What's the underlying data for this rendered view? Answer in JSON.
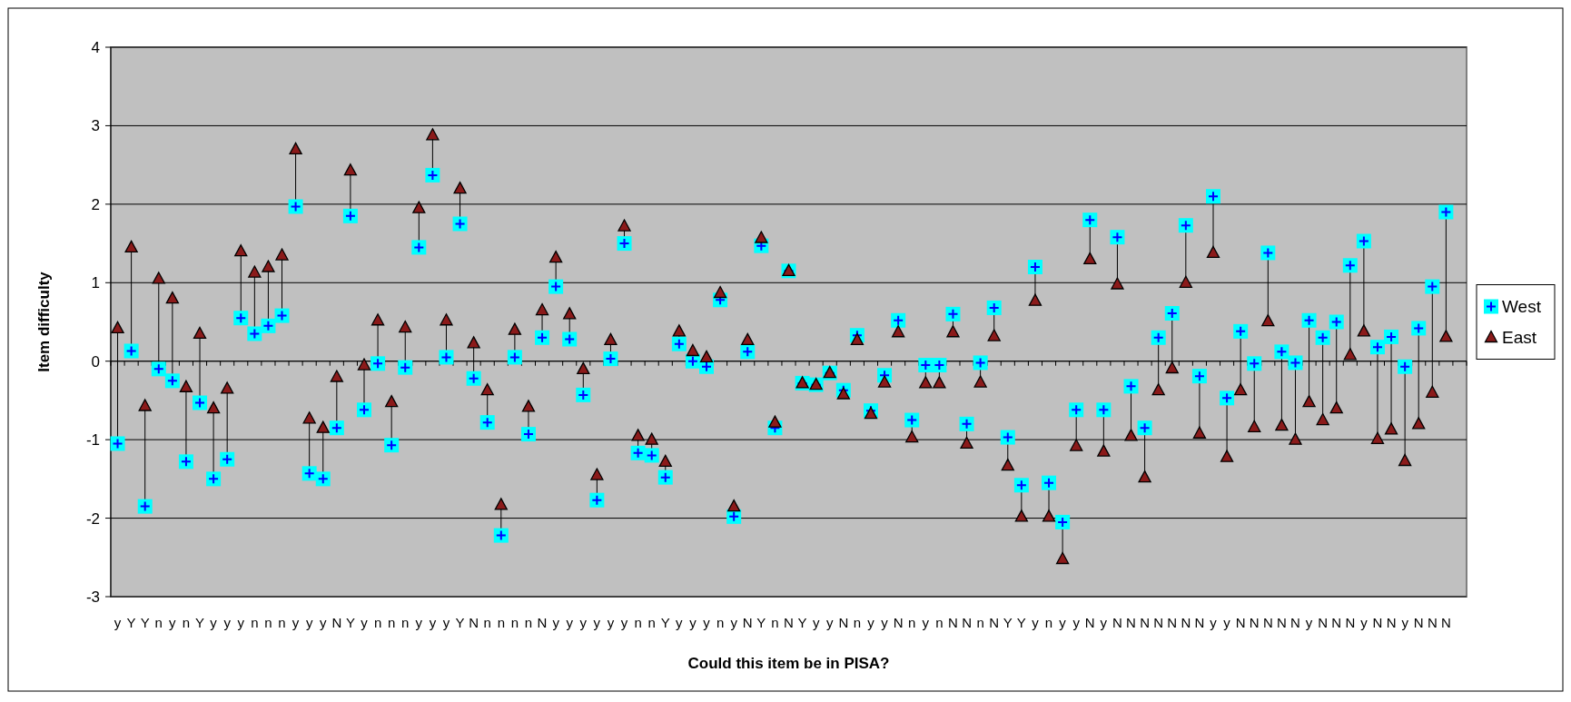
{
  "chart_data": {
    "type": "scatter",
    "xlabel": "Could this item be in PISA?",
    "ylabel": "Item difficulty",
    "categories": [
      "y",
      "Y",
      "Y",
      "n",
      "y",
      "n",
      "Y",
      "y",
      "y",
      "y",
      "n",
      "n",
      "n",
      "y",
      "y",
      "y",
      "N",
      "Y",
      "y",
      "n",
      "n",
      "n",
      "y",
      "y",
      "y",
      "Y",
      "N",
      "n",
      "n",
      "n",
      "n",
      "N",
      "y",
      "y",
      "y",
      "y",
      "y",
      "y",
      "n",
      "n",
      "Y",
      "y",
      "y",
      "y",
      "n",
      "y",
      "N",
      "Y",
      "n",
      "N",
      "Y",
      "y",
      "y",
      "N",
      "n",
      "y",
      "y",
      "N",
      "n",
      "y",
      "n",
      "N",
      "N",
      "n",
      "N",
      "Y",
      "Y",
      "y",
      "n",
      "y",
      "y",
      "N",
      "y",
      "N",
      "N",
      "N",
      "N",
      "N",
      "N",
      "N",
      "y",
      "y",
      "N",
      "N",
      "N",
      "N",
      "N",
      "y",
      "N",
      "N",
      "N",
      "y",
      "N",
      "N",
      "y",
      "N",
      "N",
      "N",
      null
    ],
    "series": [
      {
        "name": "West",
        "color": "#00ffff",
        "marker": "square",
        "values": [
          -1.05,
          0.13,
          -1.85,
          -0.1,
          -0.25,
          -1.28,
          -0.53,
          -1.5,
          -1.25,
          0.55,
          0.35,
          0.45,
          0.58,
          1.97,
          -1.43,
          -1.5,
          -0.85,
          1.85,
          -0.62,
          -0.03,
          -1.07,
          -0.08,
          1.45,
          2.37,
          0.05,
          1.75,
          -0.22,
          -0.78,
          -2.22,
          0.05,
          -0.93,
          0.3,
          0.95,
          0.28,
          -0.43,
          -1.77,
          0.03,
          1.5,
          -1.17,
          -1.2,
          -1.48,
          0.22,
          0.0,
          -0.07,
          0.78,
          -1.98,
          0.12,
          1.47,
          -0.85,
          1.15,
          -0.28,
          -0.3,
          -0.15,
          -0.37,
          0.33,
          -0.63,
          -0.18,
          0.52,
          -0.75,
          -0.05,
          -0.05,
          0.6,
          -0.8,
          -0.02,
          0.68,
          -0.97,
          -1.58,
          1.2,
          -1.55,
          -2.05,
          -0.62,
          1.8,
          -0.62,
          1.58,
          -0.32,
          -0.85,
          0.3,
          0.61,
          1.73,
          -0.19,
          2.1,
          -0.47,
          0.38,
          -0.03,
          1.38,
          0.12,
          -0.02,
          0.52,
          0.3,
          0.5,
          1.22,
          1.53,
          0.18,
          0.31,
          -0.07,
          0.42,
          0.95,
          1.9,
          null
        ]
      },
      {
        "name": "East",
        "color": "#8b1a1a",
        "marker": "triangle",
        "values": [
          0.42,
          1.45,
          -0.57,
          1.05,
          0.8,
          -0.33,
          0.35,
          -0.6,
          -0.35,
          1.4,
          1.13,
          1.2,
          1.35,
          2.7,
          -0.73,
          -0.85,
          -0.2,
          2.43,
          -0.05,
          0.52,
          -0.52,
          0.43,
          1.95,
          2.88,
          0.52,
          2.2,
          0.23,
          -0.37,
          -1.83,
          0.4,
          -0.58,
          0.65,
          1.32,
          0.6,
          -0.1,
          -1.45,
          0.27,
          1.72,
          -0.95,
          -1.0,
          -1.28,
          0.38,
          0.13,
          0.05,
          0.87,
          -1.85,
          0.27,
          1.57,
          -0.78,
          1.15,
          -0.28,
          -0.3,
          -0.15,
          -0.42,
          0.27,
          -0.67,
          -0.27,
          0.37,
          -0.97,
          -0.28,
          -0.28,
          0.37,
          -1.05,
          -0.27,
          0.32,
          -1.33,
          -1.98,
          0.77,
          -1.98,
          -2.52,
          -1.08,
          1.3,
          -1.15,
          0.98,
          -0.95,
          -1.48,
          -0.37,
          -0.09,
          1.0,
          -0.92,
          1.38,
          -1.22,
          -0.37,
          -0.84,
          0.51,
          -0.82,
          -1.0,
          -0.52,
          -0.75,
          -0.6,
          0.08,
          0.38,
          -0.99,
          -0.87,
          -1.27,
          -0.8,
          -0.4,
          0.31,
          null
        ]
      }
    ],
    "ylim": [
      -3,
      4
    ],
    "yticks": [
      -3,
      -2,
      -1,
      0,
      1,
      2,
      3,
      4
    ],
    "grid": "y",
    "legend": "right"
  }
}
